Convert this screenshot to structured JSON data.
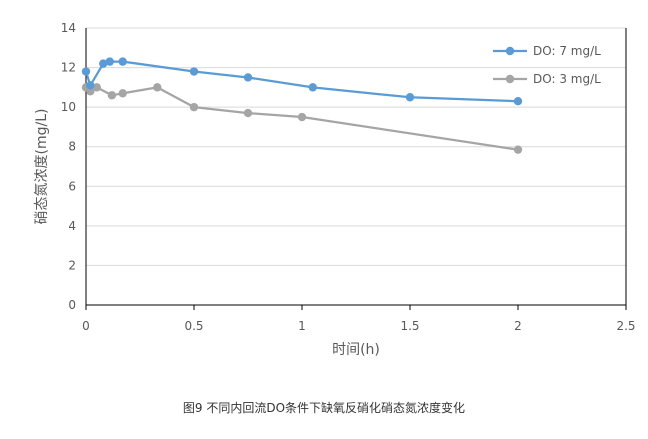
{
  "chart_data": {
    "type": "line",
    "title": "",
    "xlabel": "时间(h)",
    "ylabel": "硝态氮浓度(mg/L)",
    "xlim": [
      0,
      2.5
    ],
    "ylim": [
      0,
      14
    ],
    "xticks": [
      0,
      0.5,
      1,
      1.5,
      2,
      2.5
    ],
    "xtick_labels": [
      "0",
      "0.5",
      "1",
      "1.5",
      "2",
      "2.5"
    ],
    "yticks": [
      0,
      2,
      4,
      6,
      8,
      10,
      12,
      14
    ],
    "ytick_labels": [
      "0",
      "2",
      "4",
      "6",
      "8",
      "10",
      "12",
      "14"
    ],
    "grid": "horizontal",
    "legend_position": "top-right",
    "series": [
      {
        "name": "DO: 7 mg/L",
        "color": "#5b9bd5",
        "x": [
          0,
          0.02,
          0.08,
          0.11,
          0.17,
          0.5,
          0.75,
          1.05,
          1.5,
          2.0
        ],
        "y": [
          11.8,
          11.1,
          12.2,
          12.3,
          12.3,
          11.8,
          11.5,
          11.0,
          10.5,
          10.3
        ]
      },
      {
        "name": "DO: 3 mg/L",
        "color": "#a5a5a5",
        "x": [
          0,
          0.02,
          0.05,
          0.12,
          0.17,
          0.33,
          0.5,
          0.75,
          1.0,
          2.0
        ],
        "y": [
          11.0,
          10.8,
          11.0,
          10.6,
          10.7,
          11.0,
          10.0,
          9.7,
          9.5,
          7.85
        ]
      }
    ]
  },
  "caption": "图9 不同内回流DO条件下缺氧反硝化硝态氮浓度变化"
}
